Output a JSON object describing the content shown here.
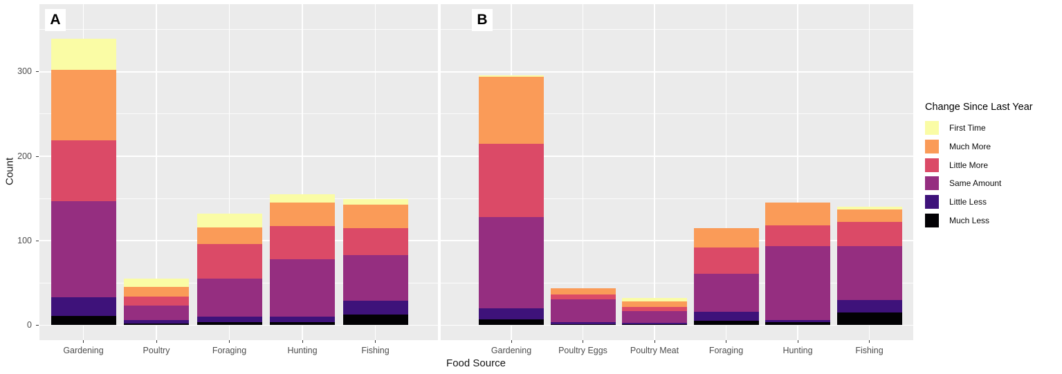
{
  "chart_data": {
    "type": "bar",
    "subtype": "stacked",
    "xlabel": "Food Source",
    "ylabel": "Count",
    "y_ticks": [
      0,
      100,
      200,
      300
    ],
    "y_minor_ticks": [
      50,
      150,
      250,
      350
    ],
    "ylim": [
      0,
      380
    ],
    "grid": true,
    "legend": {
      "position": "right",
      "title": "Change Since Last Year",
      "entries": [
        {
          "label": "First Time",
          "color": "#FAFCA5"
        },
        {
          "label": "Much More",
          "color": "#FA9B58"
        },
        {
          "label": "Little More",
          "color": "#DB4A67"
        },
        {
          "label": "Same Amount",
          "color": "#952E80"
        },
        {
          "label": "Little Less",
          "color": "#3E127A"
        },
        {
          "label": "Much Less",
          "color": "#020104"
        }
      ]
    },
    "stack_order_bottom_to_top": [
      "Much Less",
      "Little Less",
      "Same Amount",
      "Little More",
      "Much More",
      "First Time"
    ],
    "panels": [
      {
        "label": "A",
        "categories": [
          "Gardening",
          "Poultry",
          "Foraging",
          "Hunting",
          "Fishing"
        ],
        "series": [
          {
            "name": "Much Less",
            "values": [
              11,
              2,
              4,
              4,
              13
            ]
          },
          {
            "name": "Little Less",
            "values": [
              22,
              4,
              6,
              6,
              16
            ]
          },
          {
            "name": "Same Amount",
            "values": [
              114,
              17,
              45,
              68,
              54
            ]
          },
          {
            "name": "Little More",
            "values": [
              72,
              11,
              41,
              39,
              32
            ]
          },
          {
            "name": "Much More",
            "values": [
              83,
              11,
              20,
              28,
              28
            ]
          },
          {
            "name": "First Time",
            "values": [
              37,
              10,
              16,
              10,
              6
            ]
          }
        ],
        "totals": [
          339,
          55,
          132,
          155,
          149
        ]
      },
      {
        "label": "B",
        "categories": [
          "Gardening",
          "Poultry Eggs",
          "Poultry Meat",
          "Foraging",
          "Hunting",
          "Fishing"
        ],
        "series": [
          {
            "name": "Much Less",
            "values": [
              7,
              1,
              1,
              5,
              4,
              15
            ]
          },
          {
            "name": "Little Less",
            "values": [
              13,
              3,
              2,
              11,
              2,
              15
            ]
          },
          {
            "name": "Same Amount",
            "values": [
              108,
              27,
              14,
              45,
              88,
              64
            ]
          },
          {
            "name": "Little More",
            "values": [
              87,
              5,
              5,
              31,
              24,
              28
            ]
          },
          {
            "name": "Much More",
            "values": [
              79,
              8,
              6,
              23,
              27,
              15
            ]
          },
          {
            "name": "First Time",
            "values": [
              2,
              0,
              4,
              0,
              0,
              3
            ]
          }
        ],
        "totals": [
          296,
          44,
          32,
          115,
          145,
          140
        ]
      }
    ]
  }
}
